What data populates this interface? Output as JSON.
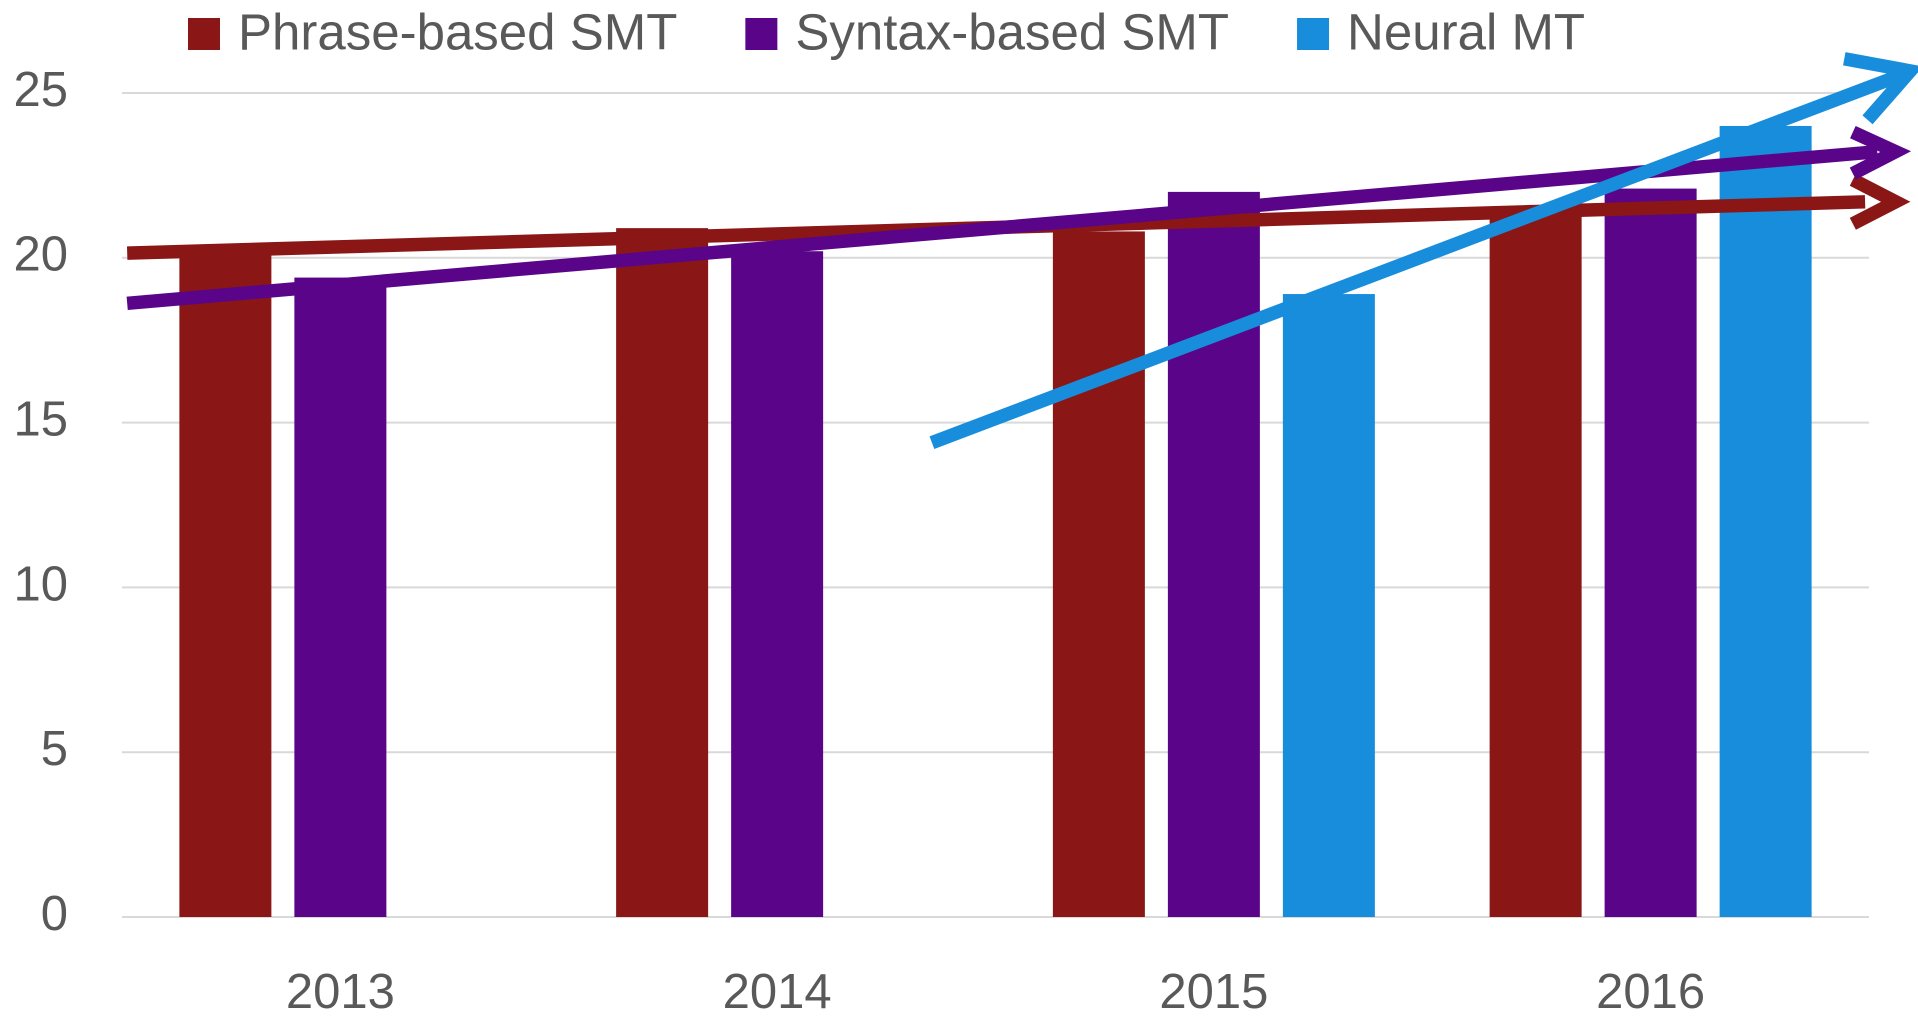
{
  "chart_data": {
    "type": "bar",
    "categories": [
      "2013",
      "2014",
      "2015",
      "2016"
    ],
    "series": [
      {
        "name": "Phrase-based SMT",
        "color": "#8b1616",
        "values": [
          20.3,
          20.9,
          20.8,
          21.3
        ]
      },
      {
        "name": "Syntax-based SMT",
        "color": "#5a0589",
        "values": [
          19.4,
          20.2,
          22.0,
          22.1
        ]
      },
      {
        "name": "Neural MT",
        "color": "#178ddb",
        "values": [
          null,
          null,
          18.9,
          24.0
        ]
      }
    ],
    "ylim": [
      0,
      25
    ],
    "yticks": [
      0,
      5,
      10,
      15,
      20,
      25
    ],
    "grid": true,
    "legend": "top"
  }
}
